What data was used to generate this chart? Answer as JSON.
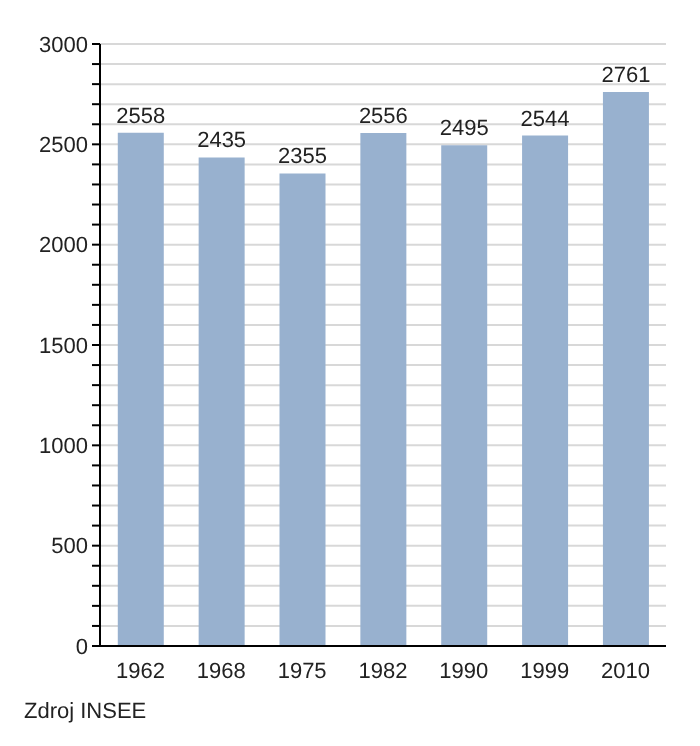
{
  "chart_data": {
    "type": "bar",
    "categories": [
      "1962",
      "1968",
      "1975",
      "1982",
      "1990",
      "1999",
      "2010"
    ],
    "values": [
      2558,
      2435,
      2355,
      2556,
      2495,
      2544,
      2761
    ],
    "color": "#98b1cf",
    "data_labels": true,
    "ylim": [
      0,
      3000
    ],
    "yticks": [
      0,
      {
        "value": 100,
        "label": null
      },
      {
        "value": 200,
        "label": null
      },
      {
        "value": 300,
        "label": null
      },
      {
        "value": 400,
        "label": null
      },
      500,
      {
        "value": 600,
        "label": null
      },
      {
        "value": 700,
        "label": null
      },
      {
        "value": 800,
        "label": null
      },
      {
        "value": 900,
        "label": null
      },
      1000,
      {
        "value": 1100,
        "label": null
      },
      {
        "value": 1200,
        "label": null
      },
      {
        "value": 1300,
        "label": null
      },
      {
        "value": 1400,
        "label": null
      },
      1500,
      {
        "value": 1600,
        "label": null
      },
      {
        "value": 1700,
        "label": null
      },
      {
        "value": 1800,
        "label": null
      },
      {
        "value": 1900,
        "label": null
      },
      2000,
      {
        "value": 2100,
        "label": null
      },
      {
        "value": 2200,
        "label": null
      },
      {
        "value": 2300,
        "label": null
      },
      {
        "value": 2400,
        "label": null
      },
      2500,
      {
        "value": 2600,
        "label": null
      },
      {
        "value": 2700,
        "label": null
      },
      {
        "value": 2800,
        "label": null
      },
      {
        "value": 2900,
        "label": null
      },
      3000
    ],
    "grid": "y",
    "annotations": [
      "Zdroj INSEE"
    ]
  }
}
